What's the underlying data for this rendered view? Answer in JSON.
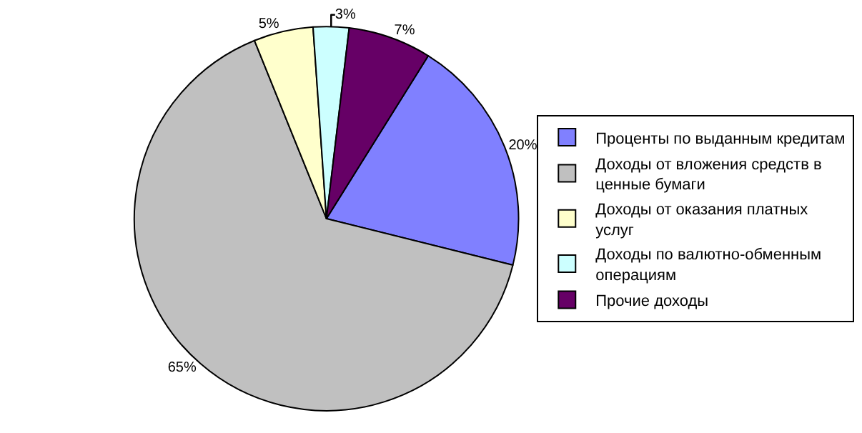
{
  "chart_data": {
    "type": "pie",
    "categories": [
      "Проценты по выданным кредитам",
      "Доходы от вложения средств в ценные бумаги",
      "Доходы от оказания платных услуг",
      "Доходы по валютно-обменным операциям",
      "Прочие доходы"
    ],
    "values": [
      20,
      65,
      5,
      3,
      7
    ],
    "value_labels": [
      "20%",
      "65%",
      "5%",
      "3%",
      "7%"
    ],
    "colors": [
      "#8080ff",
      "#c0c0c0",
      "#ffffcc",
      "#ccffff",
      "#660066"
    ],
    "legend": "right"
  }
}
